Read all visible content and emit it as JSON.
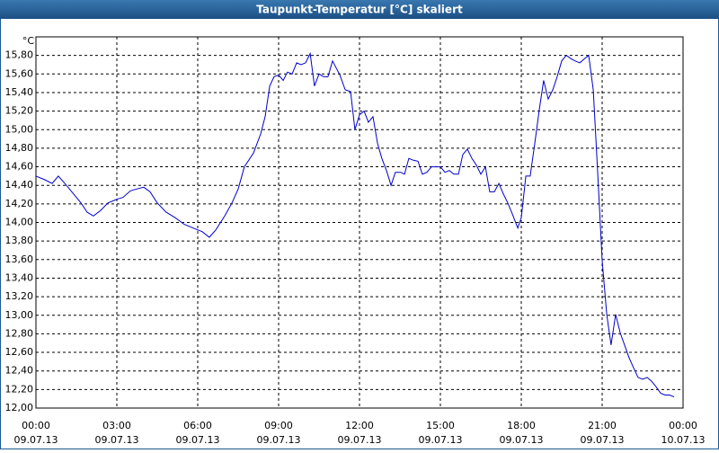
{
  "chart_data": {
    "type": "line",
    "title": "Taupunkt-Temperatur [°C] skaliert",
    "y_unit": "°C",
    "color": "#0000cc",
    "grid": true,
    "xlim": [
      0,
      24
    ],
    "ylim": [
      12,
      16
    ],
    "xticks": [
      {
        "value": 0,
        "label": "00:00"
      },
      {
        "value": 3,
        "label": "03:00"
      },
      {
        "value": 6,
        "label": "06:00"
      },
      {
        "value": 9,
        "label": "09:00"
      },
      {
        "value": 12,
        "label": "12:00"
      },
      {
        "value": 15,
        "label": "15:00"
      },
      {
        "value": 18,
        "label": "18:00"
      },
      {
        "value": 21,
        "label": "21:00"
      },
      {
        "value": 24,
        "label": "00:00"
      }
    ],
    "xtick_dates": [
      "09.07.13",
      "09.07.13",
      "09.07.13",
      "09.07.13",
      "09.07.13",
      "09.07.13",
      "09.07.13",
      "09.07.13",
      "10.07.13"
    ],
    "yticks": [
      {
        "value": 12,
        "label": "12,00"
      },
      {
        "value": 12.2,
        "label": "12,20"
      },
      {
        "value": 12.4,
        "label": "12,40"
      },
      {
        "value": 12.6,
        "label": "12,60"
      },
      {
        "value": 12.8,
        "label": "12,80"
      },
      {
        "value": 13,
        "label": "13,00"
      },
      {
        "value": 13.2,
        "label": "13,20"
      },
      {
        "value": 13.4,
        "label": "13,40"
      },
      {
        "value": 13.6,
        "label": "13,60"
      },
      {
        "value": 13.8,
        "label": "13,80"
      },
      {
        "value": 14,
        "label": "14,00"
      },
      {
        "value": 14.2,
        "label": "14,20"
      },
      {
        "value": 14.4,
        "label": "14,40"
      },
      {
        "value": 14.6,
        "label": "14,60"
      },
      {
        "value": 14.8,
        "label": "14,80"
      },
      {
        "value": 15,
        "label": "15,00"
      },
      {
        "value": 15.2,
        "label": "15,20"
      },
      {
        "value": 15.4,
        "label": "15,40"
      },
      {
        "value": 15.6,
        "label": "15,60"
      },
      {
        "value": 15.8,
        "label": "15,80"
      }
    ],
    "x": [
      0,
      0.33,
      0.6,
      0.83,
      1.07,
      1.33,
      1.67,
      1.9,
      2.13,
      2.4,
      2.67,
      3.0,
      3.23,
      3.5,
      3.73,
      4.0,
      4.23,
      4.5,
      4.83,
      5.17,
      5.5,
      5.83,
      6.17,
      6.43,
      6.67,
      7.0,
      7.27,
      7.5,
      7.73,
      8.07,
      8.33,
      8.5,
      8.67,
      8.83,
      9.0,
      9.17,
      9.33,
      9.5,
      9.67,
      9.83,
      10.0,
      10.17,
      10.33,
      10.5,
      10.67,
      10.83,
      11.0,
      11.27,
      11.47,
      11.67,
      11.83,
      12.0,
      12.17,
      12.33,
      12.5,
      12.67,
      12.83,
      13.0,
      13.17,
      13.33,
      13.53,
      13.67,
      13.83,
      14.0,
      14.17,
      14.33,
      14.5,
      14.67,
      14.83,
      15.0,
      15.17,
      15.33,
      15.5,
      15.67,
      15.83,
      16.0,
      16.17,
      16.33,
      16.5,
      16.67,
      16.83,
      17.0,
      17.17,
      17.33,
      17.5,
      17.67,
      17.87,
      18.0,
      18.17,
      18.33,
      18.5,
      18.67,
      18.83,
      19.0,
      19.17,
      19.33,
      19.5,
      19.67,
      19.87,
      20.0,
      20.17,
      20.33,
      20.5,
      20.67,
      20.83,
      21.0,
      21.17,
      21.33,
      21.5,
      21.67,
      21.83,
      22.0,
      22.17,
      22.33,
      22.5,
      22.67,
      22.83,
      23.0,
      23.17,
      23.33,
      23.5,
      23.67
    ],
    "values": [
      14.5,
      14.46,
      14.42,
      14.5,
      14.42,
      14.33,
      14.21,
      14.11,
      14.07,
      14.13,
      14.21,
      14.25,
      14.27,
      14.34,
      14.36,
      14.38,
      14.33,
      14.21,
      14.11,
      14.05,
      13.98,
      13.94,
      13.9,
      13.84,
      13.92,
      14.07,
      14.21,
      14.36,
      14.6,
      14.75,
      14.95,
      15.14,
      15.47,
      15.57,
      15.59,
      15.53,
      15.62,
      15.6,
      15.72,
      15.7,
      15.72,
      15.82,
      15.47,
      15.6,
      15.57,
      15.57,
      15.74,
      15.59,
      15.43,
      15.41,
      15.0,
      15.16,
      15.2,
      15.08,
      15.14,
      14.85,
      14.69,
      14.56,
      14.4,
      14.54,
      14.54,
      14.52,
      14.69,
      14.67,
      14.66,
      14.52,
      14.54,
      14.6,
      14.6,
      14.6,
      14.54,
      14.56,
      14.52,
      14.52,
      14.73,
      14.79,
      14.69,
      14.62,
      14.52,
      14.6,
      14.33,
      14.33,
      14.42,
      14.31,
      14.21,
      14.09,
      13.94,
      14.05,
      14.5,
      14.5,
      14.85,
      15.22,
      15.53,
      15.33,
      15.43,
      15.57,
      15.74,
      15.8,
      15.76,
      15.74,
      15.72,
      15.76,
      15.8,
      15.43,
      14.56,
      13.59,
      13.01,
      12.68,
      13.01,
      12.81,
      12.68,
      12.54,
      12.43,
      12.33,
      12.31,
      12.33,
      12.29,
      12.23,
      12.16,
      12.14,
      12.14,
      12.12
    ]
  }
}
